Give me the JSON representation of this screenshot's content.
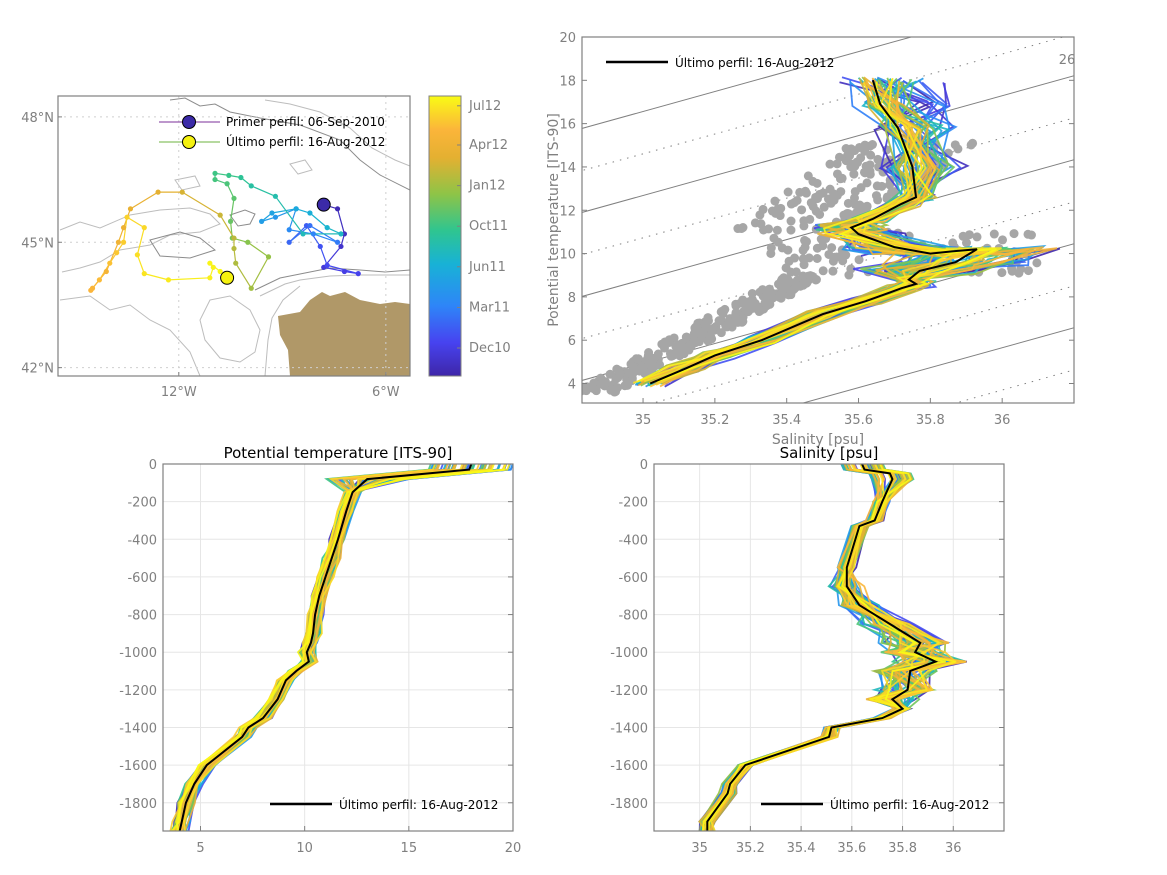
{
  "chart_data": [
    {
      "id": "map",
      "type": "scatter",
      "title": "",
      "xlabel": "",
      "ylabel": "",
      "xlim": [
        -15.5,
        -5.3
      ],
      "ylim": [
        41.8,
        48.5
      ],
      "xticks": [
        {
          "v": -12,
          "label": "12°W"
        },
        {
          "v": -6,
          "label": "6°W"
        }
      ],
      "yticks": [
        {
          "v": 42,
          "label": "42°N"
        },
        {
          "v": 45,
          "label": "45°N"
        },
        {
          "v": 48,
          "label": "48°N"
        }
      ],
      "grid": "dotted",
      "legend": {
        "position": "top-right",
        "entries": [
          {
            "label": "Primer perfil: 06-Sep-2010",
            "line_color": "#7b2f9a",
            "marker_color": "#3b2aa8"
          },
          {
            "label": "Último perfil: 16-Aug-2012",
            "line_color": "#6cb33f",
            "marker_color": "#f5f20f"
          }
        ]
      },
      "land_color": "#b09868",
      "track": [
        {
          "lon": -7.8,
          "lat": 45.9,
          "t": 0.0
        },
        {
          "lon": -7.4,
          "lat": 45.8,
          "t": 0.02
        },
        {
          "lon": -7.2,
          "lat": 45.2,
          "t": 0.04
        },
        {
          "lon": -7.3,
          "lat": 44.9,
          "t": 0.06
        },
        {
          "lon": -7.8,
          "lat": 44.4,
          "t": 0.08
        },
        {
          "lon": -7.2,
          "lat": 44.3,
          "t": 0.1
        },
        {
          "lon": -6.8,
          "lat": 44.25,
          "t": 0.11
        },
        {
          "lon": -7.7,
          "lat": 44.45,
          "t": 0.13
        },
        {
          "lon": -7.9,
          "lat": 44.9,
          "t": 0.15
        },
        {
          "lon": -8.3,
          "lat": 45.4,
          "t": 0.17
        },
        {
          "lon": -8.8,
          "lat": 45.0,
          "t": 0.19
        },
        {
          "lon": -8.2,
          "lat": 45.4,
          "t": 0.21
        },
        {
          "lon": -7.4,
          "lat": 45.0,
          "t": 0.23
        },
        {
          "lon": -8.1,
          "lat": 45.2,
          "t": 0.25
        },
        {
          "lon": -8.8,
          "lat": 45.3,
          "t": 0.27
        },
        {
          "lon": -8.6,
          "lat": 45.8,
          "t": 0.29
        },
        {
          "lon": -9.2,
          "lat": 45.6,
          "t": 0.31
        },
        {
          "lon": -9.6,
          "lat": 45.5,
          "t": 0.33
        },
        {
          "lon": -9.3,
          "lat": 45.7,
          "t": 0.35
        },
        {
          "lon": -8.6,
          "lat": 45.8,
          "t": 0.37
        },
        {
          "lon": -8.2,
          "lat": 45.7,
          "t": 0.39
        },
        {
          "lon": -7.7,
          "lat": 45.35,
          "t": 0.41
        },
        {
          "lon": -7.3,
          "lat": 45.2,
          "t": 0.43
        },
        {
          "lon": -8.4,
          "lat": 45.2,
          "t": 0.45
        },
        {
          "lon": -9.2,
          "lat": 46.1,
          "t": 0.47
        },
        {
          "lon": -9.9,
          "lat": 46.35,
          "t": 0.49
        },
        {
          "lon": -10.2,
          "lat": 46.55,
          "t": 0.51
        },
        {
          "lon": -10.55,
          "lat": 46.6,
          "t": 0.53
        },
        {
          "lon": -10.95,
          "lat": 46.65,
          "t": 0.54
        },
        {
          "lon": -10.95,
          "lat": 46.5,
          "t": 0.55
        },
        {
          "lon": -10.6,
          "lat": 46.4,
          "t": 0.56
        },
        {
          "lon": -10.4,
          "lat": 46.05,
          "t": 0.58
        },
        {
          "lon": -10.5,
          "lat": 45.5,
          "t": 0.6
        },
        {
          "lon": -10.45,
          "lat": 45.1,
          "t": 0.62
        },
        {
          "lon": -10.0,
          "lat": 45.0,
          "t": 0.64
        },
        {
          "lon": -9.4,
          "lat": 44.65,
          "t": 0.66
        },
        {
          "lon": -9.9,
          "lat": 43.9,
          "t": 0.68
        },
        {
          "lon": -10.35,
          "lat": 44.5,
          "t": 0.7
        },
        {
          "lon": -10.4,
          "lat": 44.85,
          "t": 0.71
        },
        {
          "lon": -10.4,
          "lat": 45.1,
          "t": 0.72
        },
        {
          "lon": -10.8,
          "lat": 45.65,
          "t": 0.74
        },
        {
          "lon": -11.9,
          "lat": 46.2,
          "t": 0.76
        },
        {
          "lon": -12.6,
          "lat": 46.2,
          "t": 0.78
        },
        {
          "lon": -13.4,
          "lat": 45.8,
          "t": 0.8
        },
        {
          "lon": -13.6,
          "lat": 45.35,
          "t": 0.82
        },
        {
          "lon": -13.75,
          "lat": 45.0,
          "t": 0.83
        },
        {
          "lon": -14.1,
          "lat": 44.3,
          "t": 0.85
        },
        {
          "lon": -14.5,
          "lat": 43.9,
          "t": 0.87
        },
        {
          "lon": -14.55,
          "lat": 43.85,
          "t": 0.88
        },
        {
          "lon": -14.3,
          "lat": 44.1,
          "t": 0.89
        },
        {
          "lon": -14.0,
          "lat": 44.5,
          "t": 0.9
        },
        {
          "lon": -13.8,
          "lat": 44.75,
          "t": 0.91
        },
        {
          "lon": -13.6,
          "lat": 45.0,
          "t": 0.92
        },
        {
          "lon": -13.5,
          "lat": 45.6,
          "t": 0.93
        },
        {
          "lon": -13.0,
          "lat": 45.35,
          "t": 0.94
        },
        {
          "lon": -13.2,
          "lat": 44.7,
          "t": 0.95
        },
        {
          "lon": -13.0,
          "lat": 44.25,
          "t": 0.96
        },
        {
          "lon": -12.3,
          "lat": 44.1,
          "t": 0.97
        },
        {
          "lon": -11.1,
          "lat": 44.15,
          "t": 0.98
        },
        {
          "lon": -11.0,
          "lat": 44.4,
          "t": 0.985
        },
        {
          "lon": -11.1,
          "lat": 44.5,
          "t": 0.99
        },
        {
          "lon": -10.8,
          "lat": 44.3,
          "t": 0.995
        },
        {
          "lon": -10.6,
          "lat": 44.15,
          "t": 1.0
        }
      ],
      "first_profile": {
        "lon": -7.8,
        "lat": 45.9,
        "date": "06-Sep-2010"
      },
      "last_profile": {
        "lon": -10.6,
        "lat": 44.15,
        "date": "16-Aug-2012"
      }
    },
    {
      "id": "colorbar",
      "type": "heatmap",
      "colormap": "parula",
      "tick_labels": [
        "Dec10",
        "Mar11",
        "Jun11",
        "Oct11",
        "Jan12",
        "Apr12",
        "Jul12"
      ],
      "tick_positions": [
        0.1,
        0.245,
        0.39,
        0.535,
        0.68,
        0.825,
        0.965
      ],
      "colors": [
        "#3e26a8",
        "#4743f0",
        "#2e85f8",
        "#18b2d6",
        "#2fc590",
        "#8ec447",
        "#e4b031",
        "#fbb53a",
        "#f9fb15"
      ]
    },
    {
      "id": "ts-diagram",
      "type": "line",
      "title": "",
      "xlabel": "Salinity [psu]",
      "ylabel": "Potential temperature [ITS-90]",
      "xlim": [
        34.83,
        36.2
      ],
      "ylim": [
        3.1,
        20
      ],
      "xticks": [
        35,
        35.2,
        35.4,
        35.6,
        35.8,
        36
      ],
      "yticks": [
        4,
        6,
        8,
        10,
        12,
        14,
        16,
        18,
        20
      ],
      "isopycnal_label": "26",
      "legend": {
        "position": "top-left",
        "entries": [
          {
            "label": "Último perfil: 16-Aug-2012",
            "color": "#000000"
          }
        ]
      },
      "climatology_points_color": "#a6a6a6",
      "last_profile": {
        "S": [
          35.02,
          35.12,
          35.2,
          35.33,
          35.5,
          35.62,
          35.72,
          35.76,
          35.74,
          35.77,
          35.87,
          35.93,
          35.86,
          35.8,
          35.7,
          35.6,
          35.58,
          35.64,
          35.72,
          35.76,
          35.75,
          35.71,
          35.66,
          35.64
        ],
        "T": [
          4.0,
          4.7,
          5.3,
          6.0,
          7.2,
          7.8,
          8.4,
          8.6,
          8.8,
          9.2,
          9.6,
          10.2,
          10.1,
          10.0,
          10.3,
          10.9,
          11.2,
          11.6,
          12.3,
          12.6,
          14.0,
          15.8,
          16.9,
          18.0
        ]
      }
    },
    {
      "id": "temperature-profile",
      "type": "line",
      "title": "Potential temperature [ITS-90]",
      "xlabel": "",
      "ylabel": "",
      "xlim": [
        3.2,
        20
      ],
      "ylim": [
        -1950,
        0
      ],
      "xticks": [
        5,
        10,
        15,
        20
      ],
      "yticks": [
        0,
        -200,
        -400,
        -600,
        -800,
        -1000,
        -1200,
        -1400,
        -1600,
        -1800
      ],
      "grid": true,
      "legend": {
        "position": "bottom-right",
        "entries": [
          {
            "label": "Último perfil: 16-Aug-2012",
            "color": "#000000"
          }
        ]
      },
      "last_profile": {
        "T": [
          18.0,
          17.9,
          13.0,
          12.3,
          12.0,
          11.6,
          11.3,
          11.0,
          10.7,
          10.5,
          10.4,
          10.3,
          10.1,
          10.2,
          9.6,
          9.1,
          8.7,
          8.0,
          7.3,
          7.0,
          5.3,
          4.7,
          4.3,
          4.1,
          4.0
        ],
        "z": [
          0,
          -30,
          -80,
          -150,
          -250,
          -400,
          -500,
          -600,
          -700,
          -800,
          -900,
          -950,
          -1000,
          -1050,
          -1100,
          -1150,
          -1250,
          -1350,
          -1400,
          -1450,
          -1600,
          -1700,
          -1800,
          -1900,
          -1950
        ]
      }
    },
    {
      "id": "salinity-profile",
      "type": "line",
      "title": "Salinity [psu]",
      "xlabel": "",
      "ylabel": "",
      "xlim": [
        34.82,
        36.2
      ],
      "ylim": [
        -1950,
        0
      ],
      "xticks": [
        35,
        35.2,
        35.4,
        35.6,
        35.8,
        36
      ],
      "yticks": [
        0,
        -200,
        -400,
        -600,
        -800,
        -1000,
        -1200,
        -1400,
        -1600,
        -1800
      ],
      "grid": true,
      "legend": {
        "position": "bottom-right",
        "entries": [
          {
            "label": "Último perfil: 16-Aug-2012",
            "color": "#000000"
          }
        ]
      },
      "last_profile": {
        "S": [
          35.64,
          35.65,
          35.75,
          35.76,
          35.72,
          35.69,
          35.63,
          35.58,
          35.58,
          35.63,
          35.75,
          35.87,
          35.85,
          35.93,
          35.83,
          35.82,
          35.76,
          35.8,
          35.72,
          35.52,
          35.51,
          35.18,
          35.12,
          35.11,
          35.03,
          35.03
        ],
        "z": [
          0,
          -30,
          -50,
          -80,
          -200,
          -300,
          -330,
          -550,
          -650,
          -750,
          -850,
          -950,
          -1000,
          -1050,
          -1100,
          -1200,
          -1250,
          -1300,
          -1350,
          -1400,
          -1450,
          -1600,
          -1700,
          -1750,
          -1900,
          -1950
        ]
      }
    }
  ]
}
